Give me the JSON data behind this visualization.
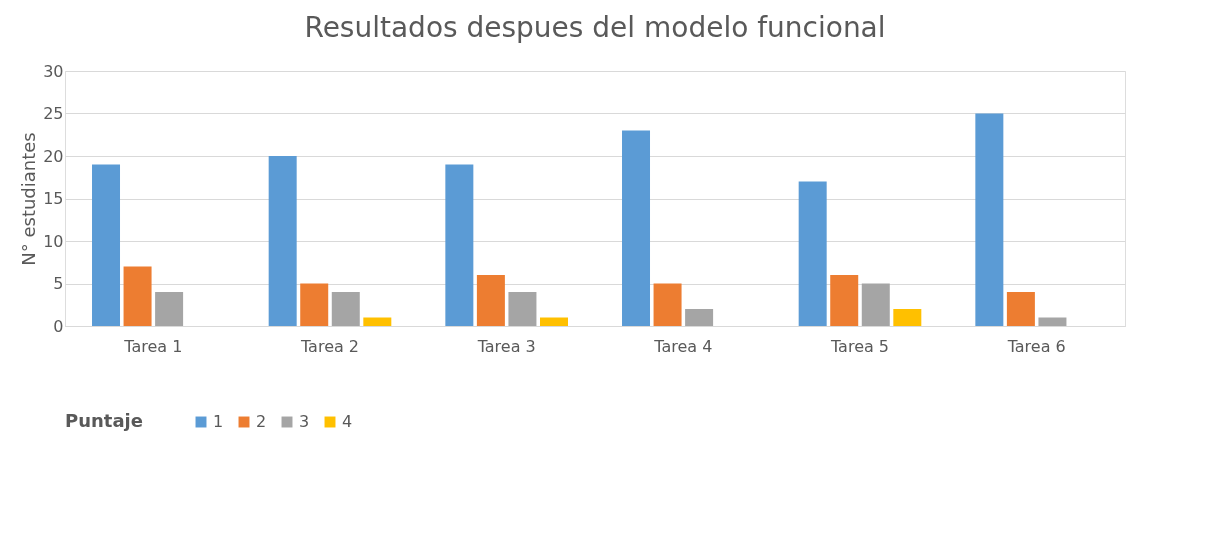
{
  "chart_data": {
    "type": "bar",
    "title": "Resultados despues del modelo funcional",
    "ylabel": "N° estudiantes",
    "legend_title": "Puntaje",
    "categories": [
      "Tarea 1",
      "Tarea 2",
      "Tarea 3",
      "Tarea 4",
      "Tarea 5",
      "Tarea 6"
    ],
    "series": [
      {
        "name": "1",
        "color": "#5b9bd5",
        "values": [
          19,
          20,
          19,
          23,
          17,
          25
        ]
      },
      {
        "name": "2",
        "color": "#ed7d31",
        "values": [
          7,
          5,
          6,
          5,
          6,
          4
        ]
      },
      {
        "name": "3",
        "color": "#a5a5a5",
        "values": [
          4,
          4,
          4,
          2,
          5,
          1
        ]
      },
      {
        "name": "4",
        "color": "#ffc000",
        "values": [
          0,
          1,
          1,
          0,
          2,
          0
        ]
      }
    ],
    "ylim": [
      0,
      30
    ],
    "yticks": [
      0,
      5,
      10,
      15,
      20,
      25,
      30
    ],
    "grid": "y",
    "legend": "bottom"
  }
}
